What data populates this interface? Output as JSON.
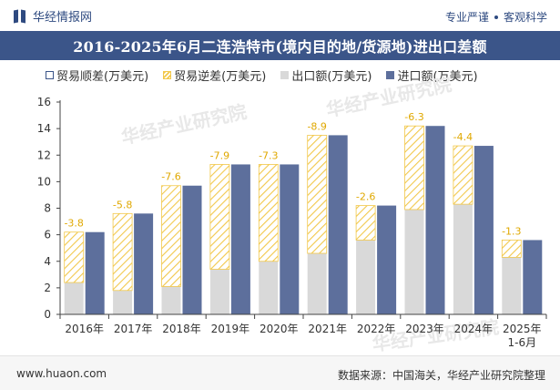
{
  "header": {
    "brand": "华经情报网",
    "tagline_left": "专业严谨",
    "tagline_right": "客观科学"
  },
  "footer": {
    "url": "www.huaon.com",
    "source": "数据来源：中国海关，华经产业研究院整理"
  },
  "watermark": "华经产业研究院",
  "colors": {
    "title_bar": "#3b5589",
    "export": "#d9d9d9",
    "import": "#5d6f9c",
    "deficit_hatch": "#f2c84b",
    "surplus_outline": "#3b5589"
  },
  "chart_data": {
    "type": "bar",
    "title": "2016-2025年6月二连浩特市(境内目的地/货源地)进出口差额",
    "categories": [
      "2016年",
      "2017年",
      "2018年",
      "2019年",
      "2020年",
      "2021年",
      "2022年",
      "2023年",
      "2024年",
      "2025年\n1-6月"
    ],
    "series": [
      {
        "name": "贸易顺差(万美元)",
        "values": [
          0,
          0,
          0,
          0,
          0,
          0,
          0,
          0,
          0,
          0
        ]
      },
      {
        "name": "贸易逆差(万美元)",
        "values": [
          -3.8,
          -5.8,
          -7.6,
          -7.9,
          -7.3,
          -8.9,
          -2.6,
          -6.3,
          -4.4,
          -1.3
        ]
      },
      {
        "name": "出口额(万美元)",
        "values": [
          2.4,
          1.8,
          2.1,
          3.4,
          4.0,
          4.6,
          5.6,
          7.9,
          8.3,
          4.3
        ]
      },
      {
        "name": "进口额(万美元)",
        "values": [
          6.2,
          7.6,
          9.7,
          11.3,
          11.3,
          13.5,
          8.2,
          14.2,
          12.7,
          5.6
        ]
      }
    ],
    "data_labels": [
      "-3.8",
      "-5.8",
      "-7.6",
      "-7.9",
      "-7.3",
      "-8.9",
      "-2.6",
      "-6.3",
      "-4.4",
      "-1.3"
    ],
    "yticks": [
      "0",
      "2",
      "4",
      "6",
      "8",
      "10",
      "12",
      "14",
      "16"
    ],
    "ylim": [
      0,
      16
    ],
    "grid": false,
    "legend_position": "top"
  }
}
